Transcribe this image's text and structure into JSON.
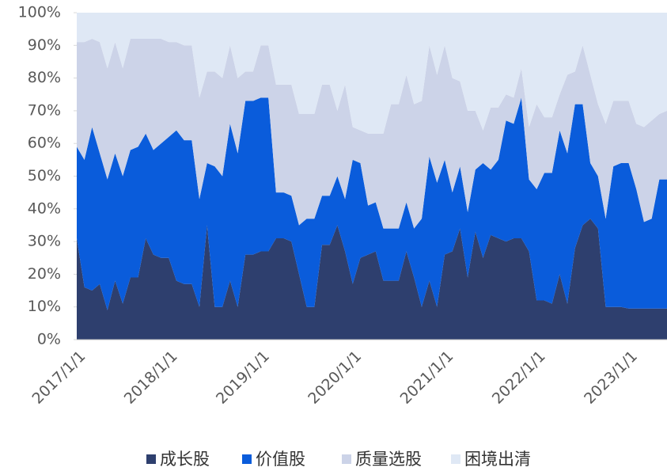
{
  "chart_data": {
    "type": "area",
    "stacked": true,
    "categories": [
      "2017/1/1",
      null,
      null,
      null,
      null,
      null,
      null,
      null,
      null,
      null,
      null,
      null,
      "2018/1/1",
      null,
      null,
      null,
      null,
      null,
      null,
      null,
      null,
      null,
      null,
      null,
      "2019/1/1",
      null,
      null,
      null,
      null,
      null,
      null,
      null,
      null,
      null,
      null,
      null,
      "2020/1/1",
      null,
      null,
      null,
      null,
      null,
      null,
      null,
      null,
      null,
      null,
      null,
      "2021/1/1",
      null,
      null,
      null,
      null,
      null,
      null,
      null,
      null,
      null,
      null,
      null,
      "2022/1/1",
      null,
      null,
      null,
      null,
      null,
      null,
      null,
      null,
      null,
      null,
      null,
      "2023/1/1",
      null,
      null,
      null,
      null,
      null
    ],
    "series": [
      {
        "name": "成长股",
        "color": "#2e3f6e",
        "values": [
          31,
          16,
          15,
          17,
          9,
          18,
          11,
          19,
          19,
          31,
          26,
          25,
          25,
          18,
          17,
          17,
          10,
          35,
          10,
          10,
          18,
          10,
          26,
          26,
          27,
          27,
          31,
          31,
          30,
          20,
          10,
          10,
          29,
          29,
          35,
          27,
          17,
          25,
          26,
          27,
          18,
          18,
          18,
          27,
          19,
          10,
          18,
          10,
          26,
          27,
          34,
          19,
          33,
          25,
          32,
          31,
          30,
          31,
          31,
          27,
          12,
          12,
          11,
          20,
          11,
          28,
          35,
          37,
          34,
          10,
          10,
          10,
          9.5,
          9.5,
          9.5,
          9.5,
          9.5,
          9.5
        ]
      },
      {
        "name": "价值股",
        "color": "#0a5cdb",
        "values": [
          28,
          39,
          50,
          40,
          40,
          39,
          39,
          39,
          40,
          32,
          32,
          35,
          37,
          46,
          44,
          44,
          33,
          19,
          43,
          40,
          48,
          47,
          47,
          47,
          47,
          47,
          14,
          14,
          14,
          15,
          27,
          27,
          15,
          15,
          15,
          16,
          38,
          29,
          15,
          15,
          16,
          16,
          16,
          15,
          15,
          27,
          38,
          38,
          29,
          18,
          19,
          20,
          19,
          29,
          20,
          24,
          37,
          35,
          43,
          22,
          34,
          39,
          40,
          44,
          46,
          44,
          37,
          17,
          16,
          27,
          43,
          44,
          44.5,
          36.5,
          26.5,
          27.5,
          39.5,
          39.5
        ]
      },
      {
        "name": "质量选股",
        "color": "#ccd3e8",
        "values": [
          32,
          36,
          27,
          34,
          34,
          34,
          33,
          34,
          33,
          29,
          34,
          32,
          29,
          27,
          29,
          29,
          31,
          28,
          29,
          30,
          24,
          23,
          9,
          9,
          16,
          16,
          33,
          33,
          34,
          34,
          32,
          32,
          34,
          34,
          20,
          35,
          10,
          10,
          22,
          21,
          29,
          38,
          38,
          39,
          38,
          36,
          34,
          33,
          35,
          35,
          26,
          31,
          18,
          10,
          19,
          16,
          8,
          8,
          9,
          16,
          26,
          17,
          17,
          11,
          24,
          10,
          18,
          27,
          22,
          29,
          20,
          19,
          19,
          20,
          29,
          30,
          20,
          21
        ]
      },
      {
        "name": "困境出清",
        "color": "#dfe8f5",
        "values": [
          9,
          9,
          8,
          9,
          17,
          9,
          17,
          8,
          8,
          8,
          8,
          8,
          9,
          9,
          10,
          10,
          26,
          18,
          18,
          20,
          10,
          20,
          18,
          18,
          10,
          10,
          22,
          22,
          22,
          31,
          31,
          31,
          22,
          22,
          30,
          22,
          35,
          36,
          37,
          37,
          37,
          28,
          28,
          19,
          28,
          27,
          10,
          19,
          10,
          20,
          21,
          30,
          30,
          36,
          29,
          29,
          25,
          26,
          17,
          35,
          28,
          32,
          32,
          25,
          19,
          18,
          10,
          19,
          28,
          34,
          27,
          27,
          27,
          34,
          35,
          33,
          31,
          30
        ]
      }
    ],
    "ylim": [
      0,
      100
    ],
    "yticks": [
      {
        "value": 0,
        "label": "0%"
      },
      {
        "value": 10,
        "label": "10%"
      },
      {
        "value": 20,
        "label": "20%"
      },
      {
        "value": 30,
        "label": "30%"
      },
      {
        "value": 40,
        "label": "40%"
      },
      {
        "value": 50,
        "label": "50%"
      },
      {
        "value": 60,
        "label": "60%"
      },
      {
        "value": 70,
        "label": "70%"
      },
      {
        "value": 80,
        "label": "80%"
      },
      {
        "value": 90,
        "label": "90%"
      },
      {
        "value": 100,
        "label": "100%"
      }
    ],
    "legend": "bottom"
  }
}
